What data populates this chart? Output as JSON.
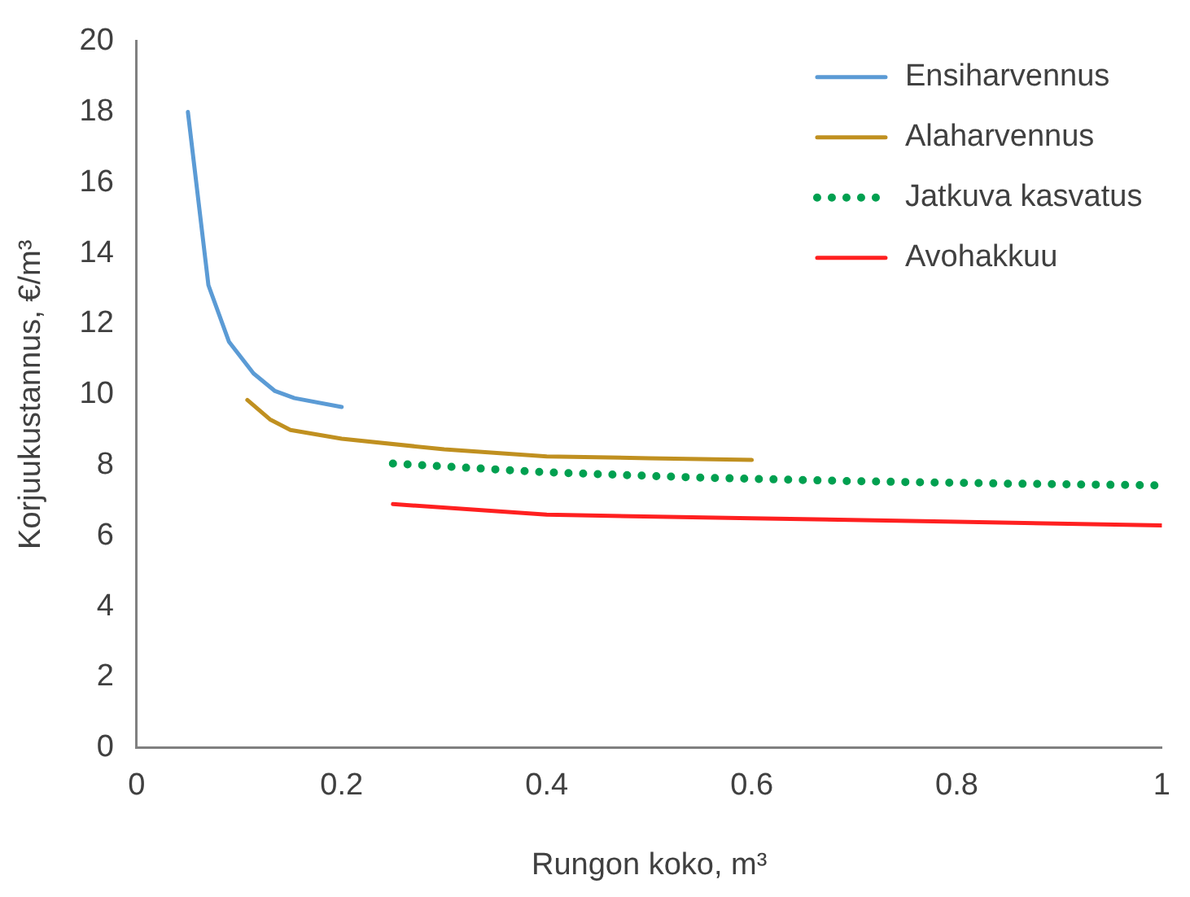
{
  "chart_data": {
    "type": "line",
    "xlabel": "Rungon koko, m³",
    "ylabel": "Korjuukustannus, €/m³",
    "xlim": [
      0,
      1
    ],
    "xticks": [
      0,
      {
        "value": 0.2,
        "label": "0.2"
      },
      {
        "value": 0.4,
        "label": "0.4"
      },
      {
        "value": 0.6,
        "label": "0.6"
      },
      {
        "value": 0.8,
        "label": "0.8"
      },
      1
    ],
    "ylim": [
      0,
      20
    ],
    "yticks": [
      0,
      2,
      4,
      6,
      8,
      10,
      12,
      14,
      16,
      18,
      20
    ],
    "grid": false,
    "legend": "top right",
    "marker": "none",
    "series": [
      {
        "name": "Ensiharvennus",
        "color": "#5b9bd5",
        "line_style": "solid",
        "x": [
          0.05,
          0.07,
          0.09,
          0.114,
          0.135,
          0.154,
          0.2
        ],
        "values": [
          18.0,
          13.1,
          11.5,
          10.6,
          10.1,
          9.9,
          9.65
        ]
      },
      {
        "name": "Alaharvennus",
        "color": "#c09020",
        "line_style": "solid",
        "x": [
          0.108,
          0.13,
          0.15,
          0.2,
          0.3,
          0.4,
          0.5,
          0.6
        ],
        "values": [
          9.85,
          9.3,
          9.0,
          8.75,
          8.45,
          8.25,
          8.2,
          8.15
        ]
      },
      {
        "name": "Jatkuva kasvatus",
        "color": "#00a050",
        "line_style": "dotted",
        "x": [
          0.25,
          0.4,
          0.55,
          0.7,
          0.85,
          1.0
        ],
        "values": [
          8.05,
          7.8,
          7.65,
          7.55,
          7.48,
          7.43
        ]
      },
      {
        "name": "Avohakkuu",
        "color": "#ff2020",
        "line_style": "solid",
        "x": [
          0.25,
          0.4,
          0.6,
          0.8,
          1.0
        ],
        "values": [
          6.9,
          6.6,
          6.5,
          6.4,
          6.3
        ]
      }
    ]
  }
}
